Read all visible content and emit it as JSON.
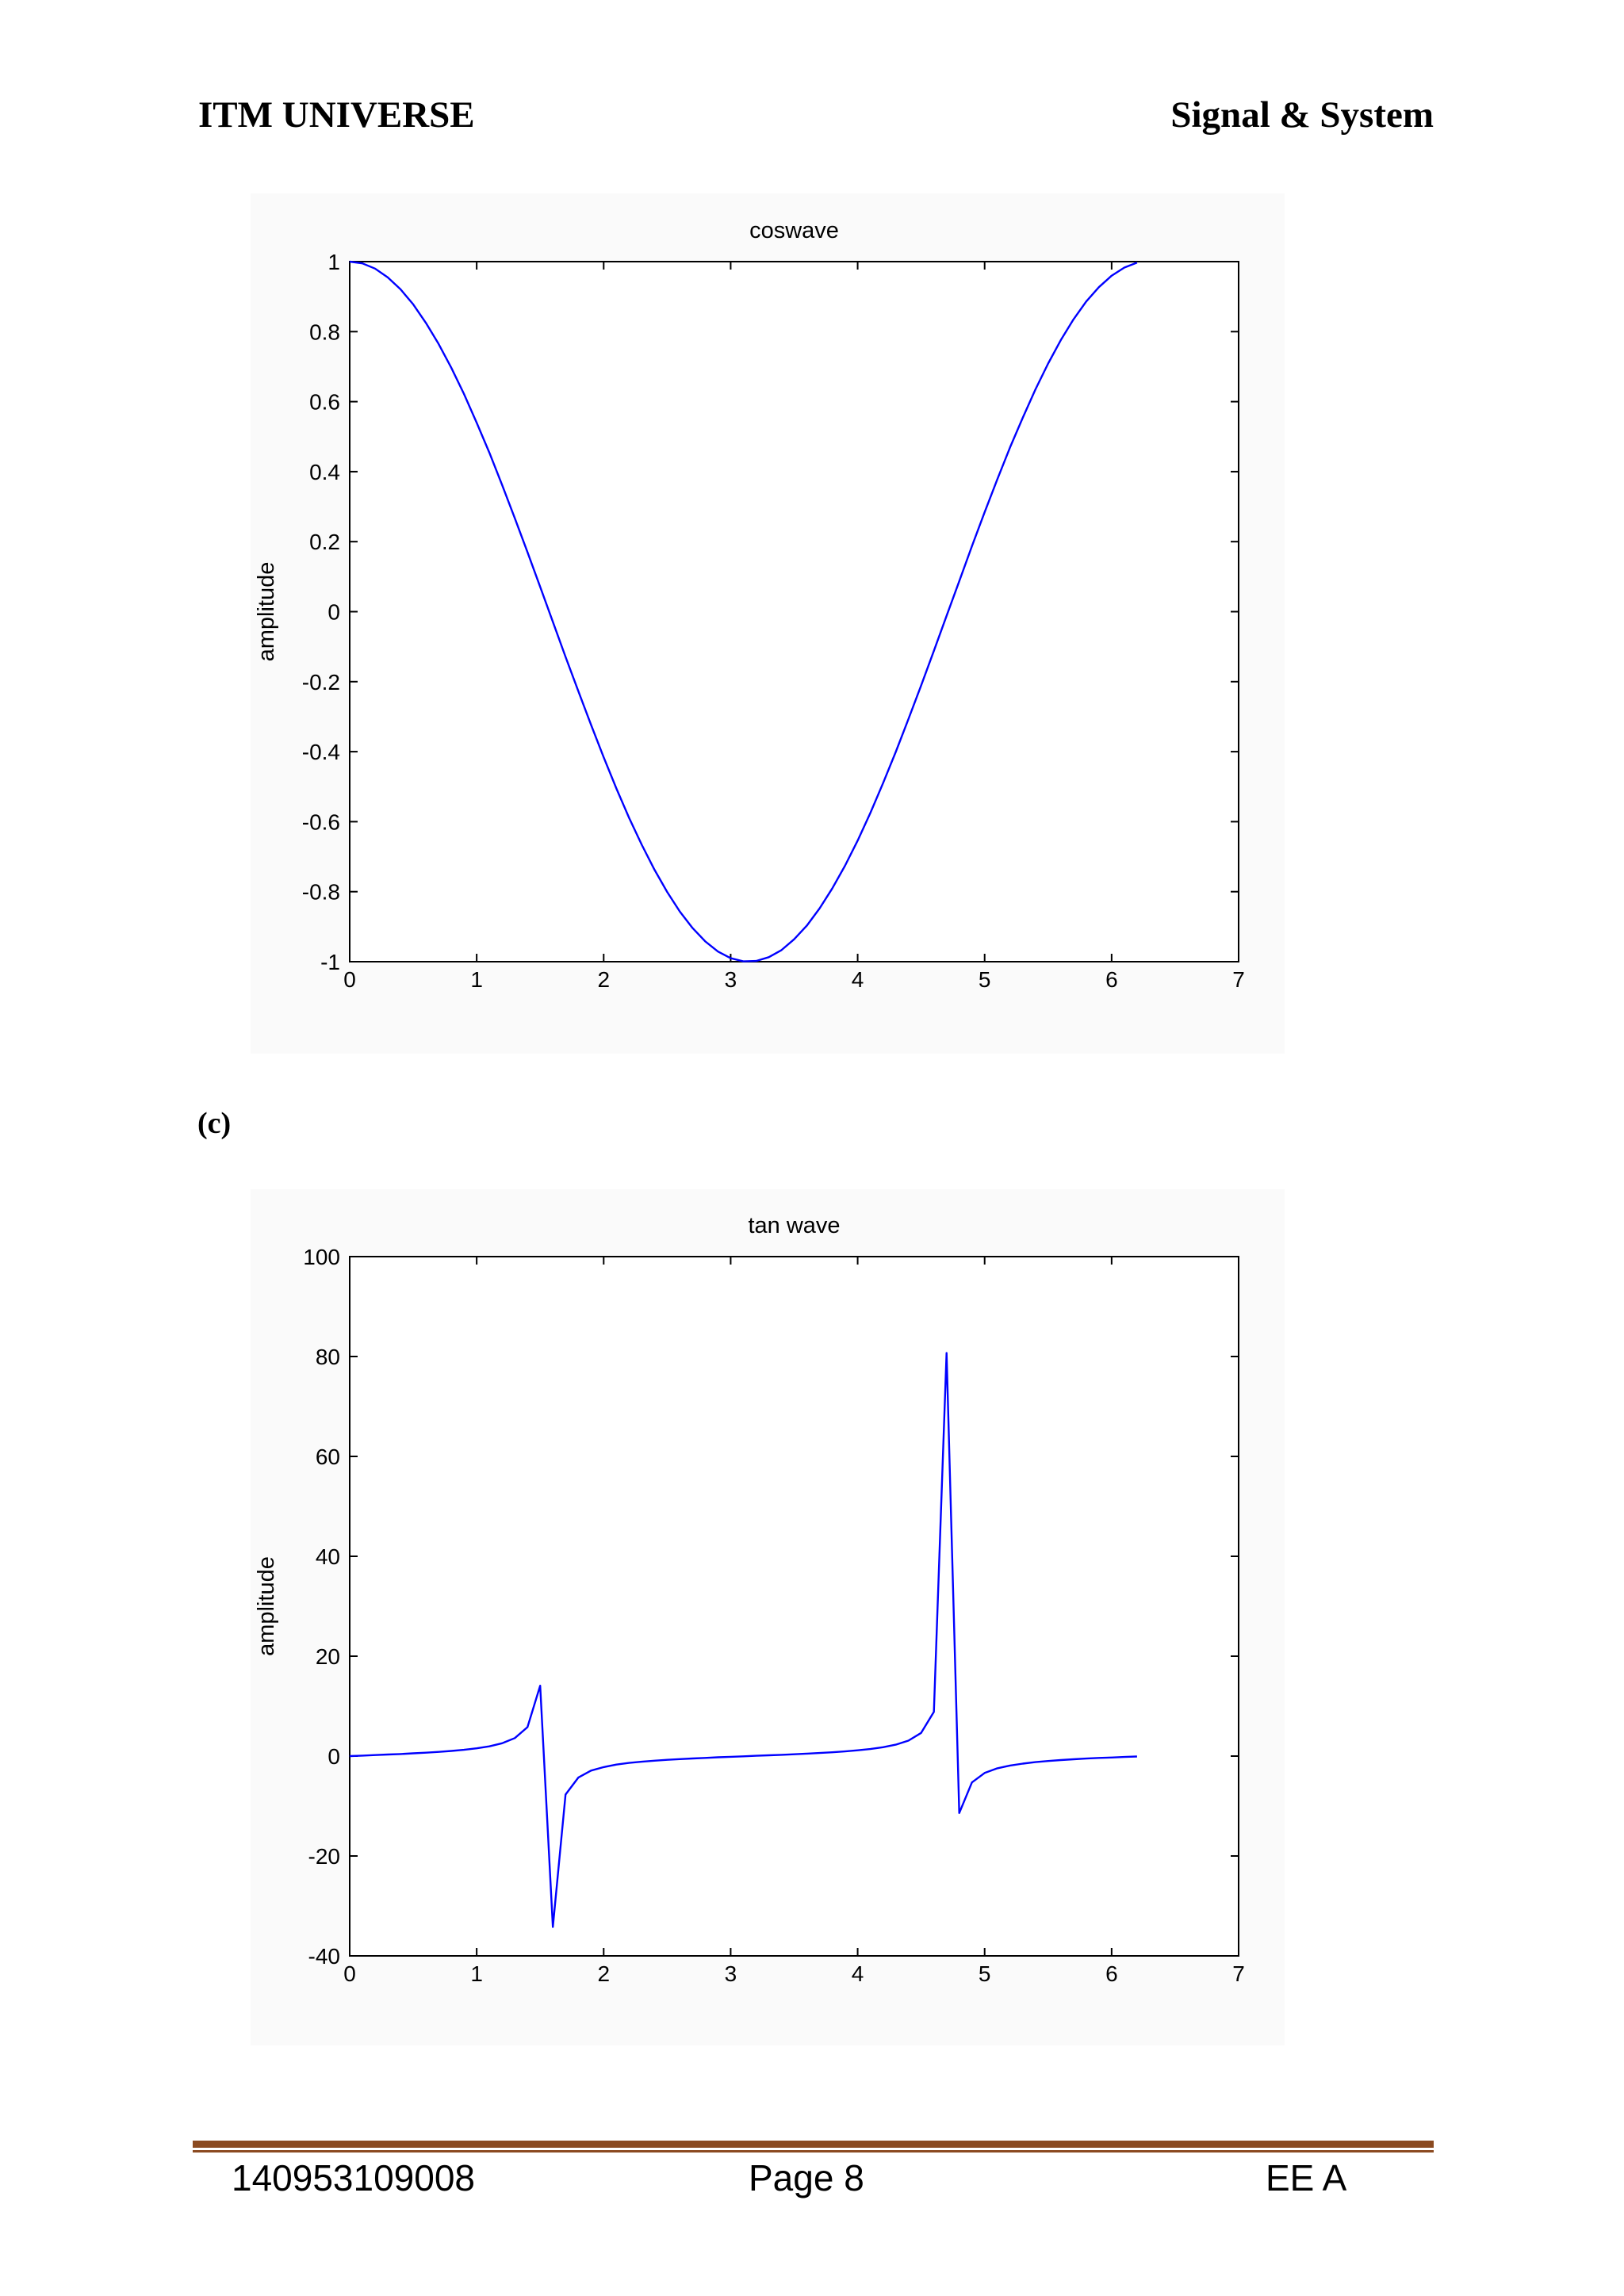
{
  "header": {
    "left": "ITM UNIVERSE",
    "right": "Signal & System"
  },
  "part_label": "(c)",
  "footer": {
    "left": "140953109008",
    "center": "Page 8",
    "right": "EE A"
  },
  "line_color": "#0000ff",
  "chart_data": [
    {
      "type": "line",
      "title": "coswave",
      "xlabel": "",
      "ylabel": "amplitude",
      "xlim": [
        0,
        7
      ],
      "ylim": [
        -1,
        1
      ],
      "xticks": [
        0,
        1,
        2,
        3,
        4,
        5,
        6,
        7
      ],
      "yticks": [
        -1,
        -0.8,
        -0.6,
        -0.4,
        -0.2,
        0,
        0.2,
        0.4,
        0.6,
        0.8,
        1
      ],
      "grid": false,
      "series": [
        {
          "x": [
            0,
            0.1,
            0.2,
            0.3,
            0.4,
            0.5,
            0.6,
            0.7,
            0.8,
            0.9,
            1.0,
            1.1,
            1.2,
            1.3,
            1.4,
            1.5,
            1.6,
            1.7,
            1.8,
            1.9,
            2.0,
            2.1,
            2.2,
            2.3,
            2.4,
            2.5,
            2.6,
            2.7,
            2.8,
            2.9,
            3.0,
            3.1,
            3.2,
            3.3,
            3.4,
            3.5,
            3.6,
            3.7,
            3.8,
            3.9,
            4.0,
            4.1,
            4.2,
            4.3,
            4.4,
            4.5,
            4.6,
            4.7,
            4.8,
            4.9,
            5.0,
            5.1,
            5.2,
            5.3,
            5.4,
            5.5,
            5.6,
            5.7,
            5.8,
            5.9,
            6.0,
            6.1,
            6.2
          ],
          "y": [
            1.0,
            0.995,
            0.98,
            0.955,
            0.921,
            0.878,
            0.825,
            0.765,
            0.697,
            0.622,
            0.54,
            0.454,
            0.362,
            0.267,
            0.17,
            0.071,
            -0.029,
            -0.129,
            -0.227,
            -0.323,
            -0.416,
            -0.505,
            -0.589,
            -0.666,
            -0.737,
            -0.801,
            -0.857,
            -0.904,
            -0.942,
            -0.971,
            -0.99,
            -0.999,
            -0.998,
            -0.987,
            -0.967,
            -0.936,
            -0.897,
            -0.848,
            -0.791,
            -0.726,
            -0.654,
            -0.575,
            -0.49,
            -0.401,
            -0.307,
            -0.211,
            -0.112,
            -0.012,
            0.087,
            0.187,
            0.284,
            0.378,
            0.469,
            0.554,
            0.635,
            0.709,
            0.776,
            0.835,
            0.886,
            0.927,
            0.96,
            0.983,
            0.997
          ]
        }
      ]
    },
    {
      "type": "line",
      "title": "tan wave",
      "xlabel": "",
      "ylabel": "amplitude",
      "xlim": [
        0,
        7
      ],
      "ylim": [
        -40,
        100
      ],
      "xticks": [
        0,
        1,
        2,
        3,
        4,
        5,
        6,
        7
      ],
      "yticks": [
        -40,
        -20,
        0,
        20,
        40,
        60,
        80,
        100
      ],
      "grid": false,
      "series": [
        {
          "x": [
            0,
            0.1,
            0.2,
            0.3,
            0.4,
            0.5,
            0.6,
            0.7,
            0.8,
            0.9,
            1.0,
            1.1,
            1.2,
            1.3,
            1.4,
            1.5,
            1.6,
            1.7,
            1.8,
            1.9,
            2.0,
            2.1,
            2.2,
            2.3,
            2.4,
            2.5,
            2.6,
            2.7,
            2.8,
            2.9,
            3.0,
            3.1,
            3.2,
            3.3,
            3.4,
            3.5,
            3.6,
            3.7,
            3.8,
            3.9,
            4.0,
            4.1,
            4.2,
            4.3,
            4.4,
            4.5,
            4.6,
            4.7,
            4.8,
            4.9,
            5.0,
            5.1,
            5.2,
            5.3,
            5.4,
            5.5,
            5.6,
            5.7,
            5.8,
            5.9,
            6.0,
            6.1,
            6.2
          ],
          "y": [
            0,
            0.1,
            0.2,
            0.31,
            0.42,
            0.55,
            0.68,
            0.84,
            1.03,
            1.26,
            1.56,
            1.96,
            2.57,
            3.6,
            5.8,
            14.1,
            -34.2,
            -7.7,
            -4.3,
            -2.9,
            -2.2,
            -1.7,
            -1.37,
            -1.12,
            -0.92,
            -0.75,
            -0.6,
            -0.47,
            -0.36,
            -0.24,
            -0.14,
            -0.04,
            0.06,
            0.16,
            0.26,
            0.37,
            0.49,
            0.62,
            0.76,
            0.93,
            1.16,
            1.42,
            1.78,
            2.29,
            3.1,
            4.64,
            8.86,
            80.7,
            -11.4,
            -5.27,
            -3.38,
            -2.44,
            -1.89,
            -1.5,
            -1.21,
            -0.99,
            -0.8,
            -0.64,
            -0.5,
            -0.37,
            -0.29,
            -0.18,
            -0.08
          ]
        }
      ]
    }
  ]
}
